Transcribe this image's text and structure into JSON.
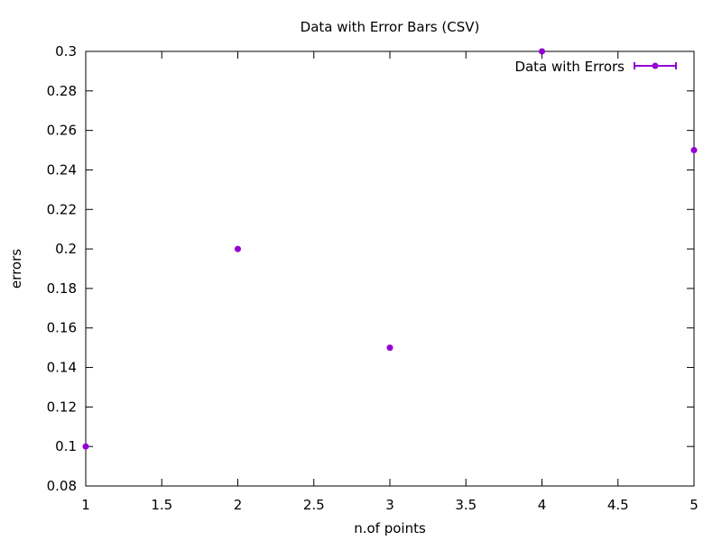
{
  "chart_data": {
    "type": "scatter",
    "title": "Data with Error Bars (CSV)",
    "xlabel": "n.of points",
    "ylabel": "errors",
    "xlim": [
      1,
      5
    ],
    "ylim": [
      0.08,
      0.3
    ],
    "x_ticks": [
      "1",
      "1.5",
      "2",
      "2.5",
      "3",
      "3.5",
      "4",
      "4.5",
      "5"
    ],
    "y_ticks": [
      "0.08",
      "0.1",
      "0.12",
      "0.14",
      "0.16",
      "0.18",
      "0.2",
      "0.22",
      "0.24",
      "0.26",
      "0.28",
      "0.3"
    ],
    "grid": false,
    "legend_position": "top-right",
    "series": [
      {
        "name": "Data with Errors",
        "color": "#9400d3",
        "x": [
          1,
          2,
          3,
          4,
          5
        ],
        "y": [
          0.1,
          0.2,
          0.15,
          0.3,
          0.25
        ]
      }
    ]
  }
}
